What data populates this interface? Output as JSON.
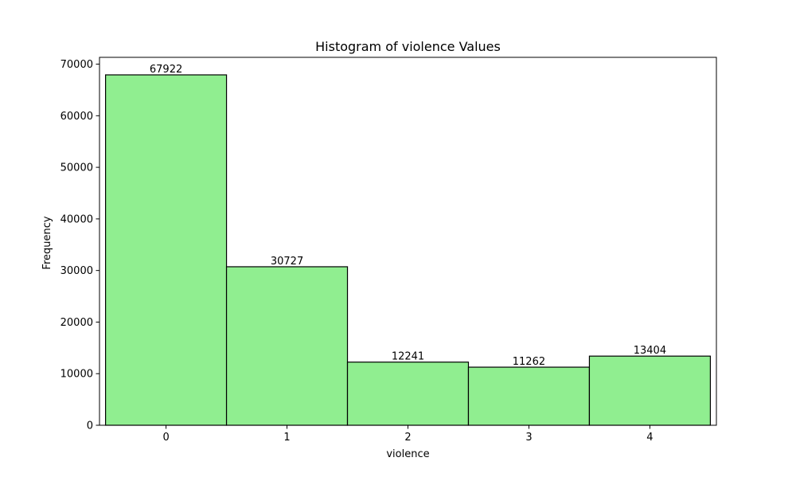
{
  "chart_data": {
    "type": "bar",
    "title": "Histogram of violence Values",
    "xlabel": "violence",
    "ylabel": "Frequency",
    "categories": [
      "0",
      "1",
      "2",
      "3",
      "4"
    ],
    "values": [
      67922,
      30727,
      12241,
      11262,
      13404
    ],
    "ylim": [
      0,
      71319
    ],
    "yticks": [
      0,
      10000,
      20000,
      30000,
      40000,
      50000,
      60000,
      70000
    ],
    "bar_color": "#90ee90",
    "edge_color": "#000000",
    "grid": false,
    "legend": "none"
  }
}
